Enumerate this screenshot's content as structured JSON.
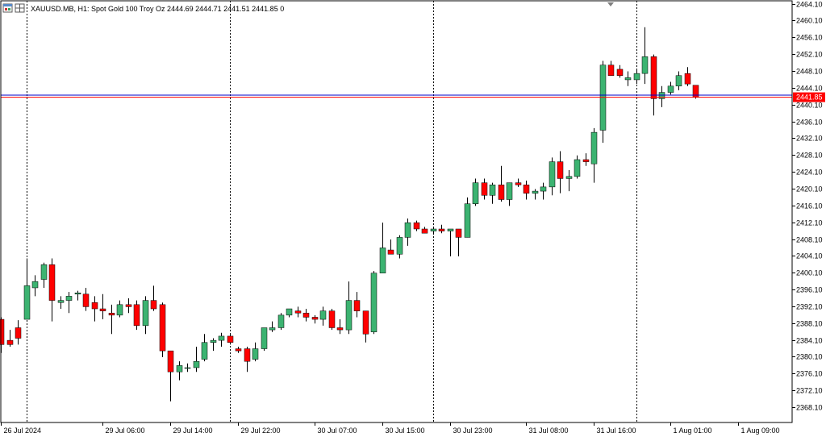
{
  "window": {
    "symbol_info": "XAUUSD.MB, H1:  Spot Gold 100 Troy Oz  2444.69 2444.71 2441.51 2441.85  0"
  },
  "colors": {
    "bull": "#3cb371",
    "bear": "#ff0000",
    "wick": "#000000",
    "bid_line": "#ff0000",
    "ask_line": "#0000cd",
    "grid": "#000000",
    "price_tag_bg": "#ff0000",
    "background": "#ffffff"
  },
  "chart_data": {
    "type": "candlestick",
    "timeframe": "H1",
    "y_ticks": [
      "2368.10",
      "2372.10",
      "2376.10",
      "2380.10",
      "2384.10",
      "2388.10",
      "2392.10",
      "2396.10",
      "2400.10",
      "2404.10",
      "2408.10",
      "2412.10",
      "2416.10",
      "2420.10",
      "2424.10",
      "2428.10",
      "2432.10",
      "2436.10",
      "2440.10",
      "2444.10",
      "2448.10",
      "2452.10",
      "2456.10",
      "2460.10",
      "2464.10"
    ],
    "ylim": [
      2364.6,
      2464.3
    ],
    "x_labels": [
      {
        "text": "26 Jul 2024",
        "index": 0
      },
      {
        "text": "29 Jul 06:00",
        "index": 12
      },
      {
        "text": "29 Jul 14:00",
        "index": 20
      },
      {
        "text": "29 Jul 22:00",
        "index": 28
      },
      {
        "text": "30 Jul 07:00",
        "index": 37
      },
      {
        "text": "30 Jul 15:00",
        "index": 45
      },
      {
        "text": "30 Jul 23:00",
        "index": 53
      },
      {
        "text": "31 Jul 08:00",
        "index": 62
      },
      {
        "text": "31 Jul 16:00",
        "index": 70
      },
      {
        "text": "1 Aug 01:00",
        "index": 79
      },
      {
        "text": "1 Aug 09:00",
        "index": 87
      }
    ],
    "period_separators": [
      3,
      27,
      51,
      75
    ],
    "current_price": "2441.85",
    "bid": 2441.85,
    "ask": 2442.35,
    "candles": [
      [
        2389.0,
        2389.5,
        2381.0,
        2383.0
      ],
      [
        2384.0,
        2386.5,
        2382.5,
        2383.0
      ],
      [
        2387.0,
        2388.8,
        2383.0,
        2384.5
      ],
      [
        2389.0,
        2403.5,
        2389.0,
        2397.0
      ],
      [
        2396.5,
        2399.5,
        2394.5,
        2398.0
      ],
      [
        2398.5,
        2402.5,
        2396.5,
        2402.0
      ],
      [
        2402.0,
        2403.5,
        2388.5,
        2393.5
      ],
      [
        2393.0,
        2394.5,
        2391.5,
        2393.5
      ],
      [
        2393.5,
        2395.5,
        2390.5,
        2394.5
      ],
      [
        2395.0,
        2395.8,
        2393.5,
        2395.3
      ],
      [
        2395.0,
        2396.5,
        2391.0,
        2392.0
      ],
      [
        2393.0,
        2394.5,
        2388.5,
        2391.5
      ],
      [
        2391.5,
        2395.0,
        2389.0,
        2391.0
      ],
      [
        2390.5,
        2392.5,
        2385.5,
        2390.0
      ],
      [
        2390.0,
        2393.5,
        2389.5,
        2392.5
      ],
      [
        2392.5,
        2394.0,
        2390.5,
        2392.0
      ],
      [
        2392.5,
        2393.5,
        2386.5,
        2387.5
      ],
      [
        2387.5,
        2394.5,
        2385.5,
        2393.5
      ],
      [
        2393.5,
        2397.0,
        2391.0,
        2391.5
      ],
      [
        2392.5,
        2393.0,
        2380.0,
        2381.5
      ],
      [
        2381.5,
        2381.5,
        2369.5,
        2376.5
      ],
      [
        2376.5,
        2379.0,
        2374.5,
        2378.0
      ],
      [
        2377.5,
        2378.5,
        2376.5,
        2377.5
      ],
      [
        2377.5,
        2382.5,
        2376.5,
        2379.0
      ],
      [
        2379.5,
        2385.5,
        2379.0,
        2383.5
      ],
      [
        2383.5,
        2384.5,
        2381.5,
        2384.0
      ],
      [
        2384.0,
        2385.8,
        2382.5,
        2385.0
      ],
      [
        2385.0,
        2385.5,
        2383.0,
        2383.5
      ],
      [
        2382.0,
        2382.5,
        2381.0,
        2381.5
      ],
      [
        2382.0,
        2382.5,
        2376.5,
        2379.0
      ],
      [
        2379.5,
        2383.5,
        2379.0,
        2382.0
      ],
      [
        2382.0,
        2387.0,
        2381.5,
        2387.0
      ],
      [
        2386.5,
        2388.5,
        2386.0,
        2387.0
      ],
      [
        2387.0,
        2390.5,
        2386.5,
        2390.0
      ],
      [
        2390.0,
        2391.5,
        2389.5,
        2391.5
      ],
      [
        2391.0,
        2392.0,
        2389.5,
        2390.5
      ],
      [
        2390.5,
        2391.5,
        2388.5,
        2389.5
      ],
      [
        2389.5,
        2390.0,
        2388.0,
        2389.0
      ],
      [
        2389.0,
        2392.0,
        2387.5,
        2391.0
      ],
      [
        2391.0,
        2391.5,
        2386.5,
        2387.0
      ],
      [
        2387.0,
        2389.0,
        2385.5,
        2386.5
      ],
      [
        2386.5,
        2398.0,
        2385.5,
        2393.5
      ],
      [
        2393.5,
        2395.5,
        2389.5,
        2391.0
      ],
      [
        2391.0,
        2391.0,
        2383.5,
        2385.5
      ],
      [
        2386.0,
        2400.5,
        2385.5,
        2400.0
      ],
      [
        2400.0,
        2412.0,
        2400.0,
        2406.0
      ],
      [
        2405.5,
        2408.0,
        2404.5,
        2404.5
      ],
      [
        2404.5,
        2409.0,
        2403.5,
        2408.5
      ],
      [
        2408.5,
        2413.0,
        2406.5,
        2412.0
      ],
      [
        2412.0,
        2412.5,
        2410.0,
        2410.5
      ],
      [
        2410.5,
        2411.0,
        2409.5,
        2409.5
      ],
      [
        2410.0,
        2411.0,
        2409.5,
        2410.5
      ],
      [
        2410.5,
        2411.5,
        2409.5,
        2410.0
      ],
      [
        2410.0,
        2410.5,
        2404.0,
        2410.5
      ],
      [
        2410.5,
        2410.5,
        2404.0,
        2408.5
      ],
      [
        2408.5,
        2418.0,
        2408.5,
        2416.5
      ],
      [
        2416.5,
        2422.5,
        2416.0,
        2421.5
      ],
      [
        2421.5,
        2422.5,
        2417.5,
        2418.5
      ],
      [
        2418.5,
        2421.5,
        2416.5,
        2421.0
      ],
      [
        2421.0,
        2425.5,
        2417.0,
        2417.5
      ],
      [
        2417.5,
        2421.5,
        2416.0,
        2421.5
      ],
      [
        2421.5,
        2422.5,
        2420.5,
        2421.0
      ],
      [
        2421.0,
        2422.0,
        2417.5,
        2419.0
      ],
      [
        2419.0,
        2420.0,
        2417.5,
        2419.5
      ],
      [
        2419.5,
        2421.5,
        2417.5,
        2420.5
      ],
      [
        2420.5,
        2427.5,
        2418.5,
        2426.5
      ],
      [
        2426.5,
        2429.0,
        2419.0,
        2422.5
      ],
      [
        2422.5,
        2424.5,
        2419.5,
        2423.0
      ],
      [
        2423.0,
        2428.0,
        2422.5,
        2427.0
      ],
      [
        2427.0,
        2428.5,
        2425.5,
        2426.5
      ],
      [
        2426.0,
        2434.5,
        2421.5,
        2433.5
      ],
      [
        2434.0,
        2450.5,
        2431.0,
        2449.5
      ],
      [
        2449.5,
        2450.5,
        2447.0,
        2447.0
      ],
      [
        2448.5,
        2449.5,
        2446.5,
        2447.0
      ],
      [
        2446.0,
        2448.0,
        2444.5,
        2446.5
      ],
      [
        2446.0,
        2448.5,
        2445.0,
        2447.5
      ],
      [
        2447.5,
        2458.5,
        2445.0,
        2451.5
      ],
      [
        2451.5,
        2452.0,
        2437.5,
        2441.5
      ],
      [
        2441.5,
        2444.5,
        2439.5,
        2443.0
      ],
      [
        2443.0,
        2445.5,
        2442.5,
        2444.5
      ],
      [
        2444.5,
        2448.0,
        2443.5,
        2447.0
      ],
      [
        2447.5,
        2449.0,
        2444.5,
        2445.0
      ],
      [
        2444.7,
        2444.7,
        2441.5,
        2441.9
      ]
    ]
  }
}
